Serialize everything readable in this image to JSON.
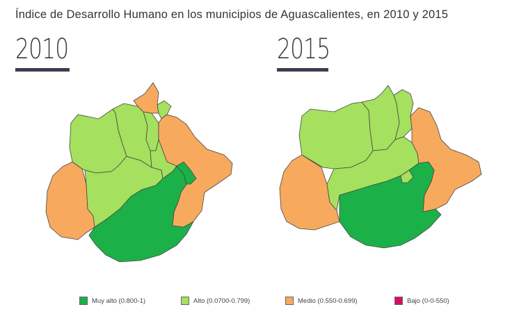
{
  "title": "Índice de Desarrollo Humano en los municipios de Aguascalientes, en 2010 y 2015",
  "maps": [
    {
      "year": "2010"
    },
    {
      "year": "2015"
    }
  ],
  "colors": {
    "muy_alto": "#1bb148",
    "alto": "#a5e05e",
    "medio": "#f7a95d",
    "bajo": "#d6105f",
    "border": "#444444"
  },
  "legend": [
    {
      "label": "Muy alto (0.800-1)",
      "color": "#1bb148"
    },
    {
      "label": "Alto (0.0700-0.799)",
      "color": "#a5e05e"
    },
    {
      "label": "Medio (0.550-0.699)",
      "color": "#f7a95d"
    },
    {
      "label": "Bajo (0-0-550)",
      "color": "#d6105f"
    }
  ]
}
